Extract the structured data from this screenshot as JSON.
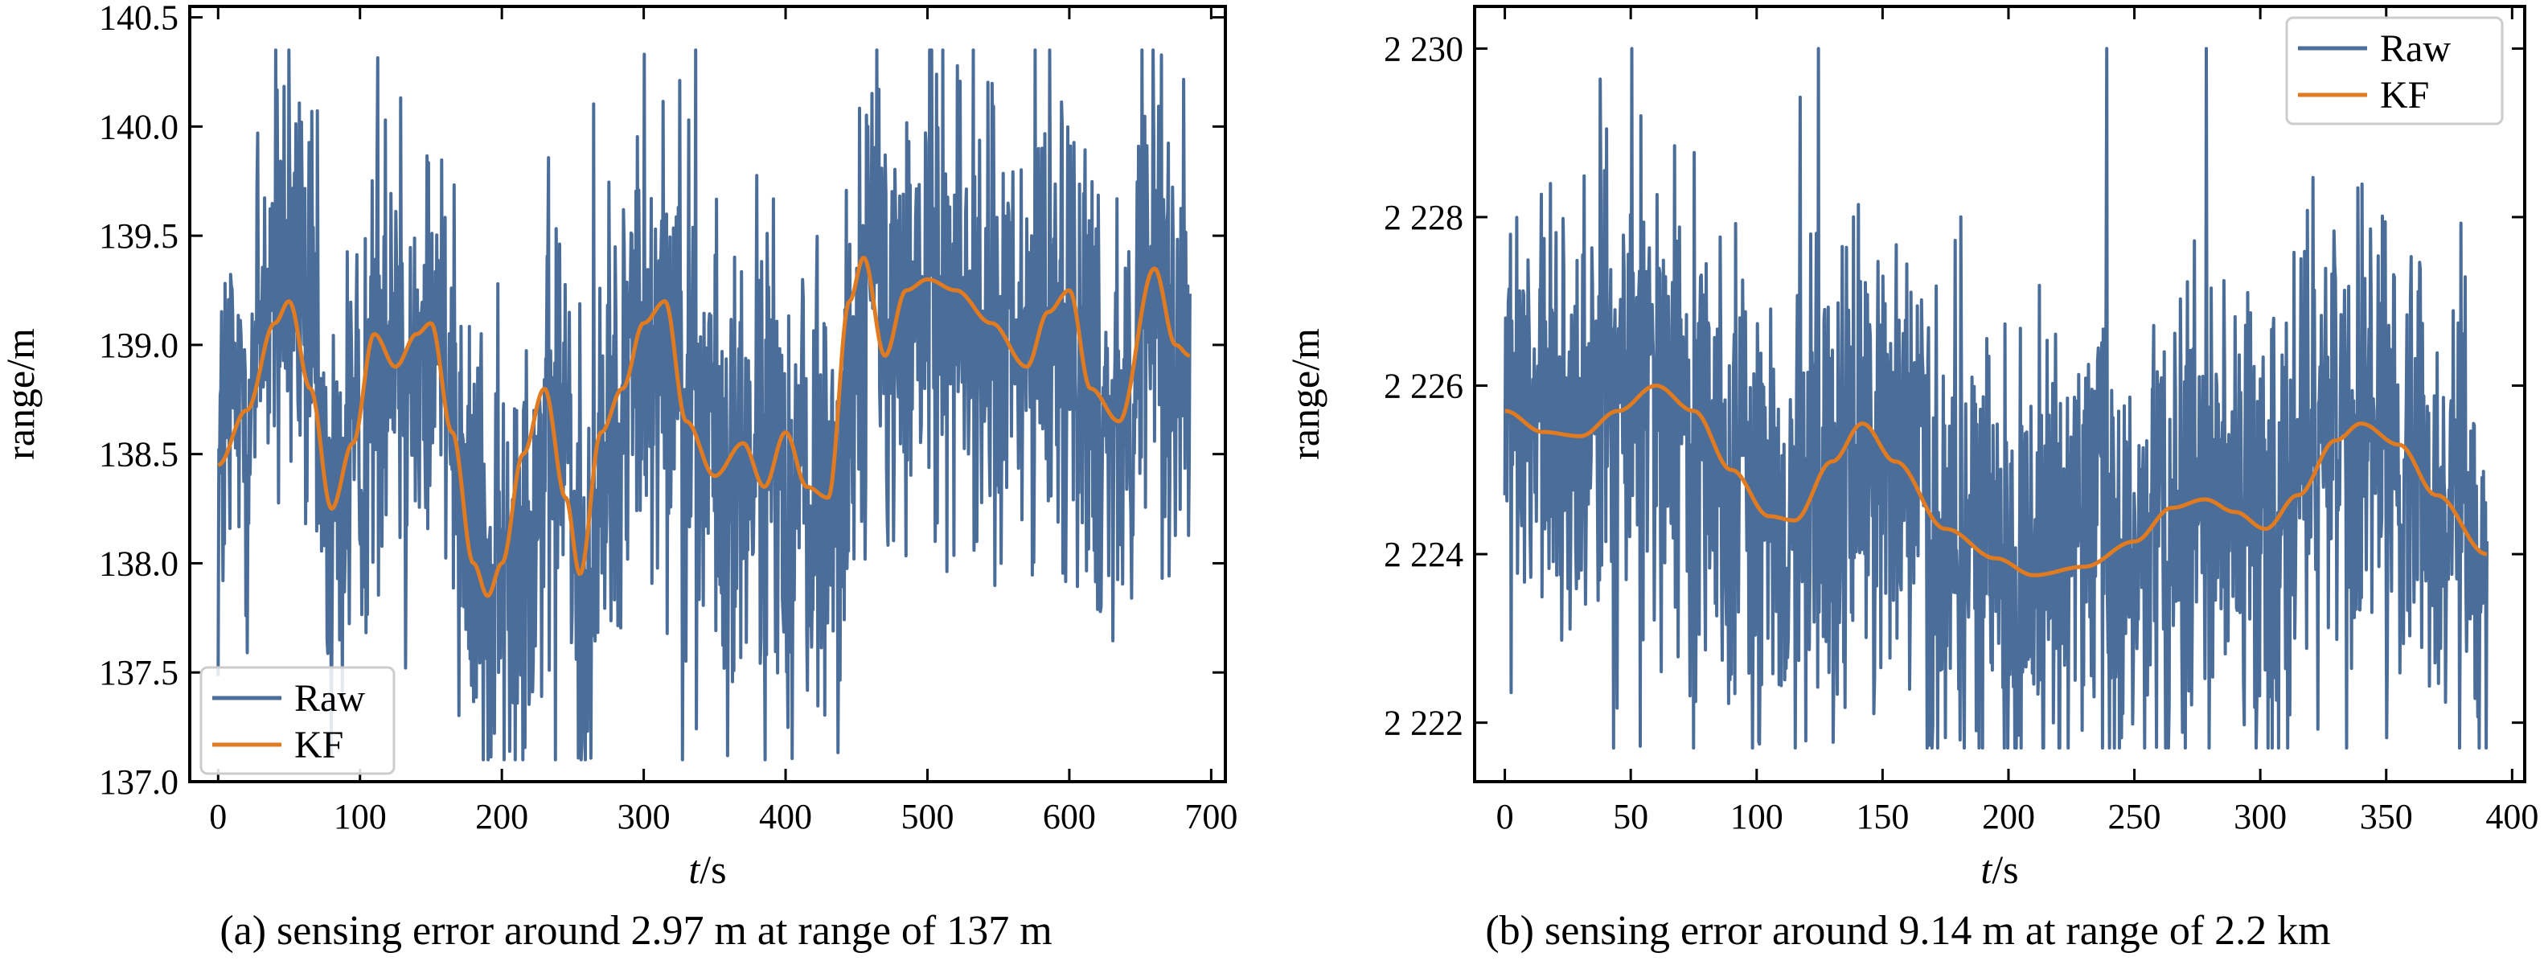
{
  "figure": {
    "panels": [
      {
        "caption": "(a) sensing error around 2.97 m at range of 137 m",
        "xlabel_italic": "t",
        "xlabel_unit": "/s",
        "ylabel": "range/m",
        "legend": [
          "Raw",
          "KF"
        ]
      },
      {
        "caption": "(b) sensing error around 9.14 m at range of 2.2 km",
        "xlabel_italic": "t",
        "xlabel_unit": "/s",
        "ylabel": "range/m",
        "legend": [
          "Raw",
          "KF"
        ]
      }
    ]
  },
  "chart_data": [
    {
      "type": "line",
      "xlabel": "t/s",
      "ylabel": "range/m",
      "xlim": [
        -20,
        710
      ],
      "ylim": [
        137.0,
        140.55
      ],
      "xticks": [
        0,
        100,
        200,
        300,
        400,
        500,
        600,
        700
      ],
      "yticks": [
        137.0,
        137.5,
        138.0,
        138.5,
        139.0,
        139.5,
        140.0,
        140.5
      ],
      "ytick_labels": [
        "137.0",
        "137.5",
        "138.0",
        "138.5",
        "139.0",
        "139.5",
        "140.0",
        "140.5"
      ],
      "grid": false,
      "legend_position": "bottom-left",
      "colors": {
        "Raw": "#4a6d99",
        "KF": "#e07b21"
      },
      "raw_x_range": [
        0,
        685
      ],
      "raw_noise_span": [
        137.1,
        140.35
      ],
      "series": [
        {
          "name": "KF",
          "x": [
            0,
            20,
            40,
            50,
            65,
            80,
            95,
            110,
            125,
            140,
            150,
            165,
            180,
            190,
            200,
            215,
            230,
            245,
            255,
            270,
            285,
            300,
            315,
            330,
            350,
            370,
            385,
            400,
            415,
            430,
            445,
            455,
            470,
            485,
            500,
            520,
            545,
            570,
            585,
            600,
            615,
            635,
            660,
            675,
            685
          ],
          "y": [
            138.45,
            138.7,
            139.1,
            139.2,
            138.8,
            138.25,
            138.55,
            139.05,
            138.9,
            139.05,
            139.1,
            138.6,
            138.0,
            137.85,
            138.0,
            138.5,
            138.8,
            138.3,
            137.95,
            138.6,
            138.8,
            139.1,
            139.2,
            138.65,
            138.4,
            138.55,
            138.35,
            138.6,
            138.35,
            138.3,
            139.2,
            139.4,
            138.95,
            139.25,
            139.3,
            139.25,
            139.1,
            138.9,
            139.15,
            139.25,
            138.8,
            138.65,
            139.35,
            139.0,
            138.95
          ]
        },
        {
          "name": "Raw",
          "x": [
            0,
            20,
            40,
            60,
            80,
            100,
            120,
            140,
            160,
            180,
            200,
            220,
            240,
            260,
            280,
            300,
            320,
            340,
            360,
            380,
            400,
            420,
            440,
            460,
            480,
            500,
            520,
            540,
            560,
            580,
            600,
            620,
            640,
            660,
            680
          ],
          "y": [
            138.5,
            138.8,
            139.3,
            139.2,
            138.2,
            138.6,
            139.2,
            138.9,
            139.1,
            138.1,
            137.8,
            138.3,
            138.6,
            137.9,
            138.7,
            139.1,
            139.2,
            138.6,
            138.3,
            138.5,
            138.4,
            138.3,
            138.5,
            139.4,
            139.0,
            139.3,
            139.2,
            139.1,
            138.9,
            139.1,
            139.2,
            138.8,
            138.7,
            139.3,
            139.0
          ]
        }
      ]
    },
    {
      "type": "line",
      "xlabel": "t/s",
      "ylabel": "range/m",
      "xlim": [
        -12,
        405
      ],
      "ylim": [
        2221.3,
        2230.5
      ],
      "xticks": [
        0,
        50,
        100,
        150,
        200,
        250,
        300,
        350,
        400
      ],
      "yticks": [
        2222,
        2224,
        2226,
        2228,
        2230
      ],
      "ytick_labels": [
        "2 222",
        "2 224",
        "2 226",
        "2 228",
        "2 230"
      ],
      "grid": false,
      "legend_position": "top-right",
      "colors": {
        "Raw": "#4a6d99",
        "KF": "#e07b21"
      },
      "raw_x_range": [
        0,
        390
      ],
      "raw_noise_span": [
        2221.7,
        2230.0
      ],
      "series": [
        {
          "name": "KF",
          "x": [
            0,
            15,
            30,
            45,
            60,
            75,
            90,
            105,
            115,
            130,
            142,
            155,
            175,
            195,
            210,
            230,
            250,
            265,
            278,
            290,
            302,
            315,
            330,
            340,
            355,
            370,
            390
          ],
          "y": [
            2225.7,
            2225.45,
            2225.4,
            2225.7,
            2226.0,
            2225.7,
            2225.0,
            2224.45,
            2224.4,
            2225.1,
            2225.55,
            2225.1,
            2224.3,
            2223.95,
            2223.75,
            2223.85,
            2224.15,
            2224.55,
            2224.65,
            2224.5,
            2224.3,
            2224.7,
            2225.35,
            2225.55,
            2225.3,
            2224.7,
            2224.0
          ]
        },
        {
          "name": "Raw",
          "x": [
            0,
            15,
            30,
            45,
            60,
            75,
            90,
            105,
            120,
            135,
            150,
            165,
            180,
            195,
            210,
            225,
            240,
            255,
            270,
            285,
            300,
            315,
            330,
            345,
            360,
            375,
            390
          ],
          "y": [
            2225.6,
            2225.4,
            2225.6,
            2225.8,
            2226.1,
            2225.5,
            2224.9,
            2224.5,
            2224.6,
            2225.2,
            2225.4,
            2224.9,
            2224.2,
            2223.9,
            2223.8,
            2223.9,
            2224.1,
            2224.5,
            2224.6,
            2224.5,
            2224.3,
            2224.8,
            2225.3,
            2225.5,
            2225.2,
            2224.6,
            2224.0
          ]
        }
      ]
    }
  ]
}
